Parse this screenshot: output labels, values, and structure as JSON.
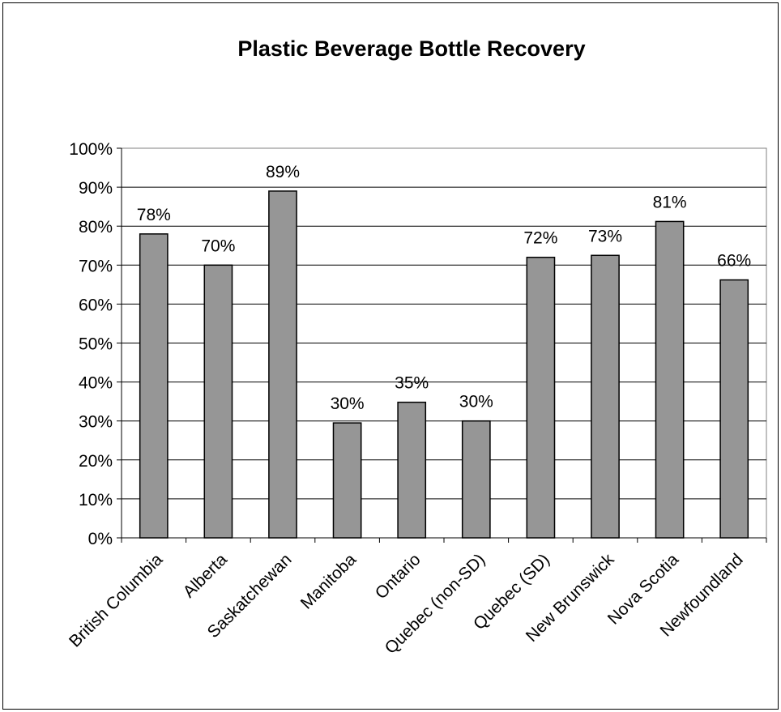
{
  "chart_data": {
    "type": "bar",
    "title": "Plastic Beverage Bottle Recovery",
    "xlabel": "",
    "ylabel": "",
    "categories": [
      "British Columbia",
      "Alberta",
      "Saskatchewan",
      "Manitoba",
      "Ontario",
      "Quebec (non-SD)",
      "Quebec (SD)",
      "New Brunswick",
      "Nova Scotia",
      "Newfoundland"
    ],
    "values": [
      0.78,
      0.7,
      0.89,
      0.295,
      0.348,
      0.3,
      0.72,
      0.725,
      0.812,
      0.662
    ],
    "data_labels": [
      "78%",
      "70%",
      "89%",
      "30%",
      "35%",
      "30%",
      "72%",
      "73%",
      "81%",
      "66%"
    ],
    "ylim": [
      0,
      1
    ],
    "yticks": [
      0,
      0.1,
      0.2,
      0.3,
      0.4,
      0.5,
      0.6,
      0.7,
      0.8,
      0.9,
      1.0
    ],
    "ytick_labels": [
      "0%",
      "10%",
      "20%",
      "30%",
      "40%",
      "50%",
      "60%",
      "70%",
      "80%",
      "90%",
      "100%"
    ],
    "grid": true,
    "legend": "none",
    "colors": {
      "bar_fill": "#969696",
      "bar_stroke": "#000000",
      "plot_border": "#808080",
      "gridline": "#000000"
    }
  }
}
